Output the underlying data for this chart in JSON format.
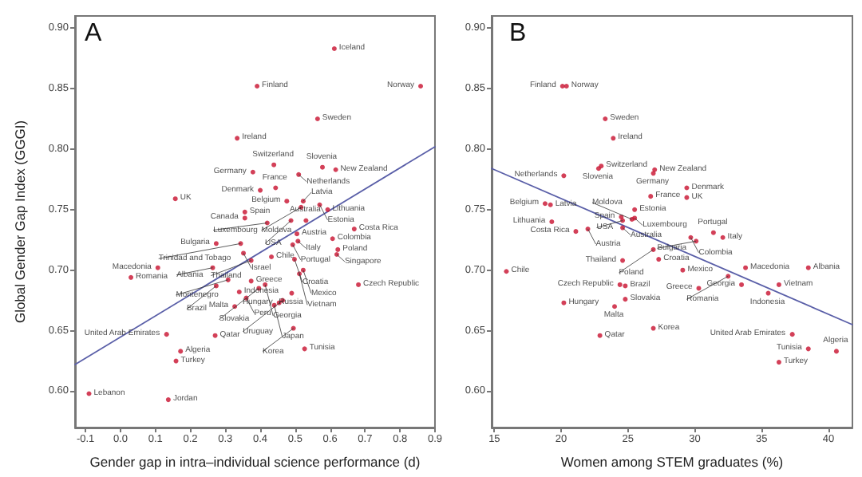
{
  "chart_data": [
    {
      "type": "scatter",
      "title": "A",
      "xlabel": "Gender gap in intra–individual science performance (d)",
      "ylabel": "Global Gender Gap Index (GGGI)",
      "xlim": [
        -0.13,
        0.9
      ],
      "xticks": [
        -0.1,
        {
          "value": 0,
          "label": "0.0"
        },
        0.1,
        0.2,
        0.3,
        0.4,
        0.5,
        0.6,
        0.7,
        0.8,
        0.9
      ],
      "ylim": [
        0.57,
        0.91
      ],
      "yticks": [
        {
          "value": 0.6,
          "label": "0.60"
        },
        0.65,
        {
          "value": 0.7,
          "label": "0.70"
        },
        0.75,
        {
          "value": 0.8,
          "label": "0.80"
        },
        0.85,
        {
          "value": 0.9,
          "label": "0.90"
        }
      ],
      "grid": false,
      "marker": "circle",
      "series": [
        {
          "color": "#c8102e",
          "x": [
            0.612,
            0.391,
            0.859,
            0.564,
            0.334,
            0.439,
            0.578,
            0.616,
            0.379,
            0.51,
            0.4,
            0.444,
            0.157,
            0.476,
            0.523,
            0.57,
            0.517,
            0.593,
            0.356,
            0.356,
            0.488,
            0.531,
            0.42,
            0.669,
            0.505,
            0.607,
            0.508,
            0.493,
            0.274,
            0.344,
            0.622,
            0.352,
            0.619,
            0.432,
            0.498,
            0.374,
            0.107,
            0.264,
            0.523,
            0.512,
            0.03,
            0.308,
            0.374,
            0.681,
            0.414,
            0.274,
            0.396,
            0.34,
            0.49,
            0.36,
            0.464,
            0.454,
            0.44,
            0.327,
            0.495,
            0.271,
            0.132,
            0.527,
            0.172,
            0.159,
            0.137,
            -0.09
          ],
          "values": [
            0.883,
            0.852,
            0.852,
            0.825,
            0.809,
            0.787,
            0.785,
            0.783,
            0.781,
            0.779,
            0.766,
            0.768,
            0.759,
            0.757,
            0.757,
            0.754,
            0.752,
            0.75,
            0.748,
            0.743,
            0.741,
            0.741,
            0.739,
            0.734,
            0.73,
            0.726,
            0.724,
            0.721,
            0.722,
            0.722,
            0.717,
            0.714,
            0.713,
            0.711,
            0.709,
            0.708,
            0.702,
            0.702,
            0.7,
            0.697,
            0.694,
            0.692,
            0.691,
            0.688,
            0.688,
            0.687,
            0.685,
            0.682,
            0.681,
            0.677,
            0.675,
            0.673,
            0.671,
            0.67,
            0.652,
            0.646,
            0.647,
            0.635,
            0.633,
            0.625,
            0.593,
            0.598
          ]
        },
        {
          "type": "line",
          "color": "#5a5fa8",
          "marker": "none",
          "x": [
            -0.13,
            0.9
          ],
          "values": [
            0.622,
            0.802
          ]
        }
      ],
      "annotations": [
        {
          "text": "Iceland",
          "x": 0.612,
          "y": 0.883
        },
        {
          "text": "Finland",
          "x": 0.391,
          "y": 0.852
        },
        {
          "text": "Norway",
          "x": 0.859,
          "y": 0.852
        },
        {
          "text": "Sweden",
          "x": 0.564,
          "y": 0.825
        },
        {
          "text": "Ireland",
          "x": 0.334,
          "y": 0.809
        },
        {
          "text": "Switzerland",
          "x": 0.439,
          "y": 0.787
        },
        {
          "text": "Slovenia",
          "x": 0.578,
          "y": 0.785
        },
        {
          "text": "New Zealand",
          "x": 0.616,
          "y": 0.783
        },
        {
          "text": "Germany",
          "x": 0.379,
          "y": 0.781
        },
        {
          "text": "Netherlands",
          "x": 0.51,
          "y": 0.779
        },
        {
          "text": "Denmark",
          "x": 0.4,
          "y": 0.766
        },
        {
          "text": "France",
          "x": 0.444,
          "y": 0.768
        },
        {
          "text": "UK",
          "x": 0.157,
          "y": 0.759
        },
        {
          "text": "Belgium",
          "x": 0.476,
          "y": 0.757
        },
        {
          "text": "Latvia",
          "x": 0.523,
          "y": 0.757
        },
        {
          "text": "Estonia",
          "x": 0.57,
          "y": 0.754
        },
        {
          "text": "Moldova",
          "x": 0.517,
          "y": 0.752
        },
        {
          "text": "Lithuania",
          "x": 0.593,
          "y": 0.75
        },
        {
          "text": "Spain",
          "x": 0.356,
          "y": 0.748
        },
        {
          "text": "Canada",
          "x": 0.356,
          "y": 0.743
        },
        {
          "text": "USA",
          "x": 0.488,
          "y": 0.741
        },
        {
          "text": "Australia",
          "x": 0.531,
          "y": 0.741
        },
        {
          "text": "Luxembourg",
          "x": 0.42,
          "y": 0.739
        },
        {
          "text": "Costa Rica",
          "x": 0.669,
          "y": 0.734
        },
        {
          "text": "Austria",
          "x": 0.505,
          "y": 0.73
        },
        {
          "text": "Colombia",
          "x": 0.607,
          "y": 0.726
        },
        {
          "text": "Italy",
          "x": 0.508,
          "y": 0.724
        },
        {
          "text": "Portugal",
          "x": 0.493,
          "y": 0.721
        },
        {
          "text": "Bulgaria",
          "x": 0.274,
          "y": 0.722
        },
        {
          "text": "Trinidad and Tobago",
          "x": 0.344,
          "y": 0.722
        },
        {
          "text": "Poland",
          "x": 0.622,
          "y": 0.717
        },
        {
          "text": "Israel",
          "x": 0.352,
          "y": 0.714
        },
        {
          "text": "Singapore",
          "x": 0.619,
          "y": 0.713
        },
        {
          "text": "Chile",
          "x": 0.432,
          "y": 0.711
        },
        {
          "text": "Croatia",
          "x": 0.498,
          "y": 0.709
        },
        {
          "text": "Thailand",
          "x": 0.374,
          "y": 0.708
        },
        {
          "text": "Macedonia",
          "x": 0.107,
          "y": 0.702
        },
        {
          "text": "Albania",
          "x": 0.264,
          "y": 0.702
        },
        {
          "text": "Mexico",
          "x": 0.523,
          "y": 0.7
        },
        {
          "text": "Vietnam",
          "x": 0.512,
          "y": 0.697
        },
        {
          "text": "Romania",
          "x": 0.03,
          "y": 0.694
        },
        {
          "text": "Montenegro",
          "x": 0.308,
          "y": 0.692
        },
        {
          "text": "Greece",
          "x": 0.374,
          "y": 0.691
        },
        {
          "text": "Czech Republic",
          "x": 0.681,
          "y": 0.688
        },
        {
          "text": "Georgia",
          "x": 0.414,
          "y": 0.688
        },
        {
          "text": "Brazil",
          "x": 0.274,
          "y": 0.687
        },
        {
          "text": "Slovakia",
          "x": 0.396,
          "y": 0.685
        },
        {
          "text": "Indonesia",
          "x": 0.34,
          "y": 0.682
        },
        {
          "text": "Russia",
          "x": 0.49,
          "y": 0.681
        },
        {
          "text": "Peru",
          "x": 0.36,
          "y": 0.677
        },
        {
          "text": "Uruguay",
          "x": 0.464,
          "y": 0.675
        },
        {
          "text": "Hungary",
          "x": 0.454,
          "y": 0.673
        },
        {
          "text": "Japan",
          "x": 0.44,
          "y": 0.671
        },
        {
          "text": "Malta",
          "x": 0.327,
          "y": 0.67
        },
        {
          "text": "Korea",
          "x": 0.495,
          "y": 0.652
        },
        {
          "text": "Qatar",
          "x": 0.271,
          "y": 0.646
        },
        {
          "text": "United Arab Emirates",
          "x": 0.132,
          "y": 0.647
        },
        {
          "text": "Tunisia",
          "x": 0.527,
          "y": 0.635
        },
        {
          "text": "Algeria",
          "x": 0.172,
          "y": 0.633
        },
        {
          "text": "Turkey",
          "x": 0.159,
          "y": 0.625
        },
        {
          "text": "Jordan",
          "x": 0.137,
          "y": 0.593
        },
        {
          "text": "Lebanon",
          "x": -0.09,
          "y": 0.598
        }
      ]
    },
    {
      "type": "scatter",
      "title": "B",
      "xlabel": "Women among STEM graduates (%)",
      "xlim": [
        14.8,
        41.8
      ],
      "xticks": [
        15,
        20,
        25,
        30,
        35,
        40
      ],
      "ylim": [
        0.57,
        0.91
      ],
      "yticks": [
        {
          "value": 0.6,
          "label": "0.60"
        },
        0.65,
        {
          "value": 0.7,
          "label": "0.70"
        },
        0.75,
        {
          "value": 0.8,
          "label": "0.80"
        },
        0.85,
        {
          "value": 0.9,
          "label": "0.90"
        }
      ],
      "grid": false,
      "marker": "circle",
      "series": [
        {
          "color": "#c8102e",
          "x": [
            20.1,
            20.4,
            23.3,
            23.9,
            23.0,
            22.8,
            27.0,
            26.9,
            20.2,
            29.4,
            26.7,
            29.4,
            18.8,
            19.2,
            25.5,
            24.5,
            25.5,
            25.3,
            24.6,
            19.3,
            24.6,
            22.0,
            21.1,
            31.4,
            29.7,
            32.1,
            30.1,
            26.9,
            27.3,
            24.6,
            33.8,
            38.5,
            15.9,
            29.1,
            32.5,
            36.3,
            33.5,
            24.4,
            24.8,
            30.3,
            35.5,
            24.8,
            20.2,
            24.0,
            26.9,
            37.3,
            22.9,
            38.5,
            40.6,
            36.3
          ],
          "values": [
            0.852,
            0.852,
            0.825,
            0.809,
            0.786,
            0.784,
            0.783,
            0.78,
            0.778,
            0.768,
            0.761,
            0.76,
            0.755,
            0.754,
            0.75,
            0.744,
            0.743,
            0.742,
            0.741,
            0.74,
            0.735,
            0.734,
            0.732,
            0.731,
            0.727,
            0.727,
            0.724,
            0.717,
            0.709,
            0.708,
            0.702,
            0.702,
            0.699,
            0.7,
            0.695,
            0.688,
            0.688,
            0.688,
            0.687,
            0.685,
            0.681,
            0.676,
            0.673,
            0.67,
            0.652,
            0.647,
            0.646,
            0.635,
            0.633,
            0.624
          ]
        },
        {
          "type": "line",
          "color": "#5a5fa8",
          "marker": "none",
          "x": [
            14.8,
            41.8
          ],
          "values": [
            0.784,
            0.655
          ]
        }
      ],
      "annotations": [
        {
          "text": "Finland",
          "x": 20.1,
          "y": 0.852
        },
        {
          "text": "Norway",
          "x": 20.4,
          "y": 0.852
        },
        {
          "text": "Sweden",
          "x": 23.3,
          "y": 0.825
        },
        {
          "text": "Ireland",
          "x": 23.9,
          "y": 0.809
        },
        {
          "text": "Switzerland",
          "x": 23.0,
          "y": 0.786
        },
        {
          "text": "Slovenia",
          "x": 22.8,
          "y": 0.784
        },
        {
          "text": "New Zealand",
          "x": 27.0,
          "y": 0.783
        },
        {
          "text": "Germany",
          "x": 26.9,
          "y": 0.78
        },
        {
          "text": "Netherlands",
          "x": 20.2,
          "y": 0.778
        },
        {
          "text": "Denmark",
          "x": 29.4,
          "y": 0.768
        },
        {
          "text": "France",
          "x": 26.7,
          "y": 0.761
        },
        {
          "text": "UK",
          "x": 29.4,
          "y": 0.76
        },
        {
          "text": "Belgium",
          "x": 18.8,
          "y": 0.755
        },
        {
          "text": "Latvia",
          "x": 19.2,
          "y": 0.754
        },
        {
          "text": "Estonia",
          "x": 25.5,
          "y": 0.75
        },
        {
          "text": "Spain",
          "x": 24.5,
          "y": 0.744
        },
        {
          "text": "Luxembourg",
          "x": 25.5,
          "y": 0.743
        },
        {
          "text": "Moldova",
          "x": 25.3,
          "y": 0.742
        },
        {
          "text": "USA",
          "x": 24.6,
          "y": 0.741
        },
        {
          "text": "Lithuania",
          "x": 19.3,
          "y": 0.74
        },
        {
          "text": "Australia",
          "x": 24.6,
          "y": 0.735
        },
        {
          "text": "Austria",
          "x": 22.0,
          "y": 0.734
        },
        {
          "text": "Costa Rica",
          "x": 21.1,
          "y": 0.732
        },
        {
          "text": "Portugal",
          "x": 31.4,
          "y": 0.731
        },
        {
          "text": "Colombia",
          "x": 29.7,
          "y": 0.727
        },
        {
          "text": "Italy",
          "x": 32.1,
          "y": 0.727
        },
        {
          "text": "Bulgaria",
          "x": 30.1,
          "y": 0.724
        },
        {
          "text": "Poland",
          "x": 26.9,
          "y": 0.717
        },
        {
          "text": "Croatia",
          "x": 27.3,
          "y": 0.709
        },
        {
          "text": "Thailand",
          "x": 24.6,
          "y": 0.708
        },
        {
          "text": "Macedonia",
          "x": 33.8,
          "y": 0.702
        },
        {
          "text": "Albania",
          "x": 38.5,
          "y": 0.702
        },
        {
          "text": "Chile",
          "x": 15.9,
          "y": 0.699
        },
        {
          "text": "Mexico",
          "x": 29.1,
          "y": 0.7
        },
        {
          "text": "Romania",
          "x": 32.5,
          "y": 0.695
        },
        {
          "text": "Vietnam",
          "x": 36.3,
          "y": 0.688
        },
        {
          "text": "Georgia",
          "x": 33.5,
          "y": 0.688
        },
        {
          "text": "Czech Republic",
          "x": 24.4,
          "y": 0.688
        },
        {
          "text": "Brazil",
          "x": 24.8,
          "y": 0.687
        },
        {
          "text": "Greece",
          "x": 30.3,
          "y": 0.685
        },
        {
          "text": "Indonesia",
          "x": 35.5,
          "y": 0.681
        },
        {
          "text": "Slovakia",
          "x": 24.8,
          "y": 0.676
        },
        {
          "text": "Hungary",
          "x": 20.2,
          "y": 0.673
        },
        {
          "text": "Malta",
          "x": 24.0,
          "y": 0.67
        },
        {
          "text": "Korea",
          "x": 26.9,
          "y": 0.652
        },
        {
          "text": "United Arab Emirates",
          "x": 37.3,
          "y": 0.647
        },
        {
          "text": "Qatar",
          "x": 22.9,
          "y": 0.646
        },
        {
          "text": "Tunisia",
          "x": 38.5,
          "y": 0.635
        },
        {
          "text": "Algeria",
          "x": 40.6,
          "y": 0.633
        },
        {
          "text": "Turkey",
          "x": 36.3,
          "y": 0.624
        }
      ]
    }
  ]
}
